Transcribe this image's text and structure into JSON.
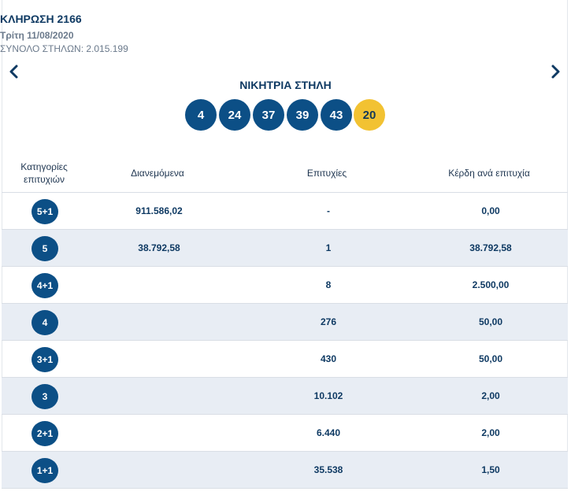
{
  "header": {
    "title": "ΚΛΗΡΩΣΗ 2166",
    "date": "Τρίτη 11/08/2020",
    "total_columns": "ΣΥΝΟΛΟ ΣΤΗΛΩΝ: 2.015.199"
  },
  "nav": {
    "prev_icon": "chevron-left-icon",
    "next_icon": "chevron-right-icon"
  },
  "winning": {
    "title": "ΝΙΚΗΤΡΙΑ ΣΤΗΛΗ",
    "numbers": [
      "4",
      "24",
      "37",
      "39",
      "43"
    ],
    "joker": "20"
  },
  "colors": {
    "ball": "#0c4f86",
    "joker": "#f2c232",
    "row_alt": "#e8edf4",
    "text": "#0f3a63"
  },
  "table": {
    "headers": {
      "category_line1": "Κατηγορίες",
      "category_line2": "επιτυχιών",
      "distributed": "Διανεμόμενα",
      "wins": "Επιτυχίες",
      "prize": "Κέρδη ανά επιτυχία"
    },
    "rows": [
      {
        "category": "5+1",
        "distributed": "911.586,02",
        "wins": "-",
        "prize": "0,00"
      },
      {
        "category": "5",
        "distributed": "38.792,58",
        "wins": "1",
        "prize": "38.792,58"
      },
      {
        "category": "4+1",
        "distributed": "",
        "wins": "8",
        "prize": "2.500,00"
      },
      {
        "category": "4",
        "distributed": "",
        "wins": "276",
        "prize": "50,00"
      },
      {
        "category": "3+1",
        "distributed": "",
        "wins": "430",
        "prize": "50,00"
      },
      {
        "category": "3",
        "distributed": "",
        "wins": "10.102",
        "prize": "2,00"
      },
      {
        "category": "2+1",
        "distributed": "",
        "wins": "6.440",
        "prize": "2,00"
      },
      {
        "category": "1+1",
        "distributed": "",
        "wins": "35.538",
        "prize": "1,50"
      }
    ]
  }
}
